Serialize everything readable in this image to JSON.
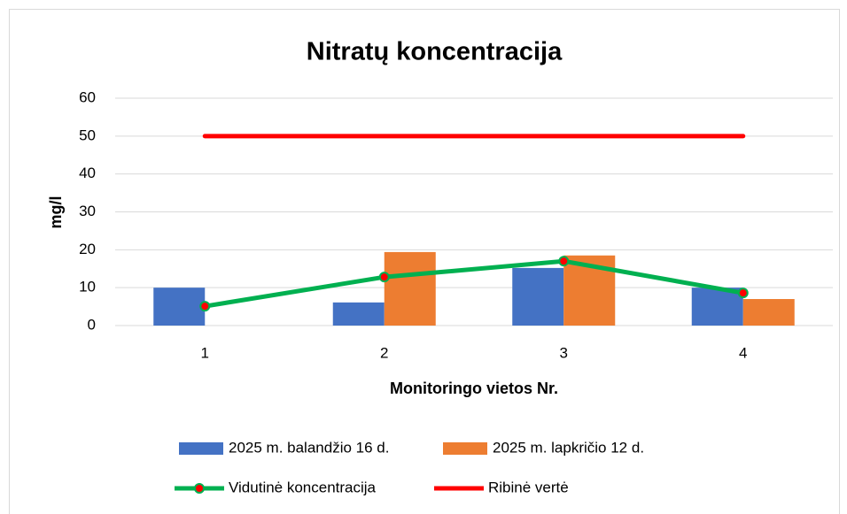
{
  "chart_data": {
    "type": "bar",
    "title": "Nitratų koncentracija",
    "x_label": "Monitoringo vietos Nr.",
    "y_label": "mg/l",
    "categories": [
      "1",
      "2",
      "3",
      "4"
    ],
    "series": [
      {
        "name": "2025 m. balandžio 16 d.",
        "type": "bar",
        "color": "#4472c4",
        "values": [
          10,
          6.1,
          15.2,
          10
        ]
      },
      {
        "name": "2025 m. lapkričio 12 d.",
        "type": "bar",
        "color": "#ed7d31",
        "values": [
          null,
          19.4,
          18.5,
          7
        ]
      },
      {
        "name": "Vidutinė koncentracija",
        "type": "line",
        "color": "#00b050",
        "marker_color": "#ff0000",
        "values": [
          5.1,
          12.8,
          17,
          8.6
        ]
      },
      {
        "name": "Ribinė vertė",
        "type": "line",
        "color": "#ff0000",
        "values": [
          50,
          50,
          50,
          50
        ]
      }
    ],
    "ylim": [
      0,
      60
    ],
    "yticks": [
      0,
      10,
      20,
      30,
      40,
      50,
      60
    ],
    "grid": true
  }
}
